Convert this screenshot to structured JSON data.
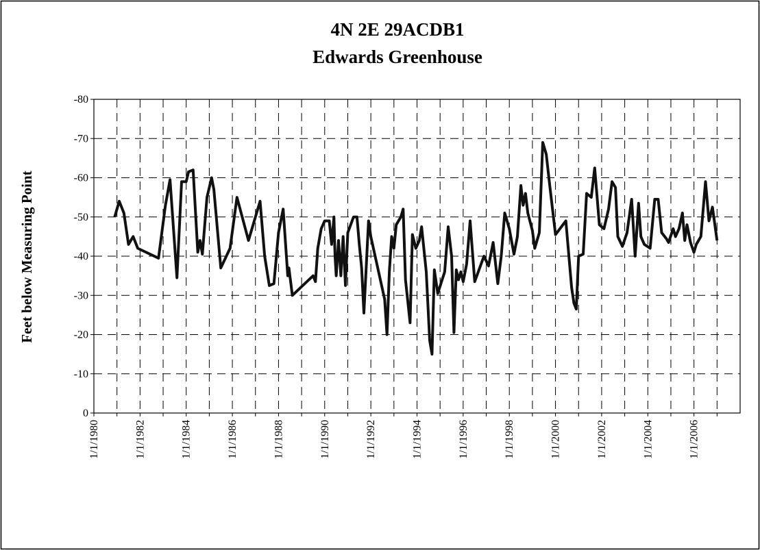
{
  "chart_data": {
    "type": "line",
    "title": "4N 2E 29ACDB1",
    "subtitle": "Edwards Greenhouse",
    "y_label": "Feet below Measuring Point",
    "x": [
      1980.9,
      1981.1,
      1981.3,
      1981.5,
      1981.7,
      1981.9,
      1982.8,
      1983.1,
      1983.3,
      1983.6,
      1983.8,
      1984.0,
      1984.1,
      1984.3,
      1984.5,
      1984.6,
      1984.7,
      1984.9,
      1985.1,
      1985.2,
      1985.5,
      1985.9,
      1986.2,
      1986.7,
      1987.2,
      1987.4,
      1987.6,
      1987.8,
      1988.0,
      1988.2,
      1988.4,
      1988.45,
      1988.6,
      1989.5,
      1989.6,
      1989.7,
      1989.85,
      1990.0,
      1990.2,
      1990.3,
      1990.4,
      1990.45,
      1990.5,
      1990.6,
      1990.7,
      1990.8,
      1990.9,
      1991.0,
      1991.25,
      1991.4,
      1991.5,
      1991.6,
      1991.7,
      1991.9,
      1992.0,
      1992.6,
      1992.7,
      1992.8,
      1992.9,
      1993.0,
      1993.1,
      1993.3,
      1993.4,
      1993.5,
      1993.7,
      1993.8,
      1993.95,
      1994.1,
      1994.2,
      1994.4,
      1994.55,
      1994.65,
      1994.75,
      1994.9,
      1995.2,
      1995.35,
      1995.5,
      1995.6,
      1995.7,
      1995.8,
      1995.9,
      1996.0,
      1996.15,
      1996.3,
      1996.5,
      1996.9,
      1997.1,
      1997.3,
      1997.5,
      1997.65,
      1997.8,
      1998.0,
      1998.2,
      1998.35,
      1998.5,
      1998.6,
      1998.7,
      1998.8,
      1999.0,
      1999.1,
      1999.3,
      1999.45,
      1999.6,
      1999.75,
      2000.0,
      2000.45,
      2000.7,
      2000.8,
      2000.9,
      2001.0,
      2001.2,
      2001.35,
      2001.55,
      2001.7,
      2001.9,
      2002.1,
      2002.3,
      2002.45,
      2002.6,
      2002.7,
      2002.9,
      2003.1,
      2003.3,
      2003.45,
      2003.6,
      2003.7,
      2003.85,
      2004.1,
      2004.3,
      2004.45,
      2004.6,
      2004.8,
      2004.9,
      2005.1,
      2005.2,
      2005.35,
      2005.5,
      2005.6,
      2005.7,
      2005.85,
      2006.0,
      2006.1,
      2006.3,
      2006.5,
      2006.65,
      2006.8,
      2007.0
    ],
    "series": [
      {
        "name": "4N 2E 29ACDB1",
        "color": "#111111",
        "values": [
          -50,
          -54,
          -51,
          -43,
          -45,
          -42,
          -39.5,
          -53,
          -59.5,
          -34.5,
          -59,
          -59,
          -61.5,
          -62,
          -41,
          -44,
          -40.5,
          -55,
          -60,
          -57,
          -37,
          -42,
          -55,
          -44,
          -54,
          -40,
          -32.5,
          -33,
          -46,
          -52,
          -35,
          -37,
          -30,
          -35,
          -33.5,
          -42,
          -47,
          -49,
          -49,
          -43,
          -50,
          -40,
          -35,
          -44,
          -35,
          -45,
          -32.5,
          -46,
          -50,
          -50,
          -43,
          -37,
          -25.5,
          -49,
          -45,
          -29,
          -20,
          -36,
          -45,
          -42,
          -48,
          -50,
          -52,
          -34,
          -23,
          -45.5,
          -42,
          -44,
          -47.5,
          -36,
          -18.5,
          -15,
          -36.5,
          -30.5,
          -36,
          -47.5,
          -40,
          -20.5,
          -36.5,
          -34,
          -36,
          -33.5,
          -38,
          -49,
          -33.5,
          -40,
          -37.5,
          -43.5,
          -33,
          -40,
          -51,
          -47,
          -40.5,
          -45,
          -58,
          -53,
          -56,
          -51,
          -46.5,
          -42,
          -46,
          -69,
          -66,
          -58,
          -45.5,
          -49,
          -32,
          -28,
          -26.5,
          -40,
          -40.5,
          -56,
          -55,
          -62.5,
          -48,
          -47,
          -52,
          -59,
          -57.5,
          -45,
          -42.5,
          -46,
          -54.5,
          -40,
          -53.5,
          -45,
          -43,
          -42,
          -54.5,
          -54.5,
          -46,
          -44.5,
          -43.5,
          -47,
          -45,
          -47,
          -51,
          -44,
          -48,
          -43.5,
          -41,
          -43,
          -45,
          -59,
          -49,
          -52.5,
          -44
        ]
      }
    ],
    "xlim": [
      1980,
      2008
    ],
    "xticks": [
      {
        "value": 1980,
        "label": "1/1/1980"
      },
      {
        "value": 1982,
        "label": "1/1/1982"
      },
      {
        "value": 1984,
        "label": "1/1/1984"
      },
      {
        "value": 1986,
        "label": "1/1/1986"
      },
      {
        "value": 1988,
        "label": "1/1/1988"
      },
      {
        "value": 1990,
        "label": "1/1/1990"
      },
      {
        "value": 1992,
        "label": "1/1/1992"
      },
      {
        "value": 1994,
        "label": "1/1/1994"
      },
      {
        "value": 1996,
        "label": "1/1/1996"
      },
      {
        "value": 1998,
        "label": "1/1/1998"
      },
      {
        "value": 2000,
        "label": "1/1/2000"
      },
      {
        "value": 2002,
        "label": "1/1/2002"
      },
      {
        "value": 2004,
        "label": "1/1/2004"
      },
      {
        "value": 2006,
        "label": "1/1/2006"
      }
    ],
    "xminor": [
      1981,
      1983,
      1985,
      1987,
      1989,
      1991,
      1993,
      1995,
      1997,
      1999,
      2001,
      2003,
      2005,
      2007
    ],
    "ylim": [
      0,
      -80
    ],
    "yticks": [
      0,
      -10,
      -20,
      -30,
      -40,
      -50,
      -60,
      -70,
      -80
    ],
    "grid": true
  }
}
